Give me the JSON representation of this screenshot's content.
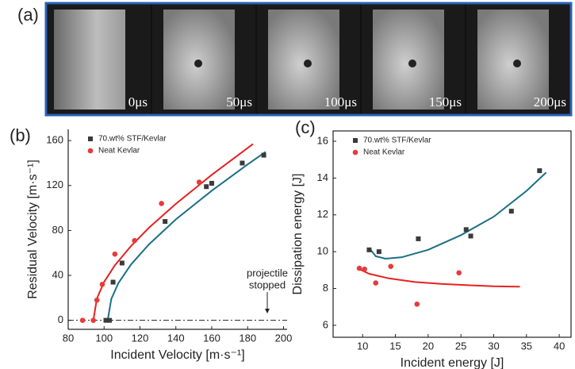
{
  "figure": {
    "panel_a": {
      "label": "(a)",
      "frames": [
        "0μs",
        "50μs",
        "100μs",
        "150μs",
        "200μs"
      ]
    }
  },
  "chart_data": [
    {
      "type": "scatter",
      "label": "(b)",
      "x_label": "Incident Velocity [m·s⁻¹]",
      "y_label": "Residual Velocity [m·s⁻¹]",
      "xlim": [
        80,
        202
      ],
      "ylim": [
        -8,
        170
      ],
      "xticks": [
        80,
        100,
        120,
        140,
        160,
        180,
        200
      ],
      "yticks": [
        0,
        40,
        80,
        120,
        160
      ],
      "annotation": [
        "projectile",
        "stopped"
      ],
      "frame": "open",
      "zero_line": true,
      "series": [
        {
          "name": "70.wt% STF/Kevlar",
          "color": "#3a3a3a",
          "marker": "square",
          "fit_color": "#1b6f86",
          "x": [
            101,
            103,
            105,
            110,
            134,
            157,
            160,
            177,
            189
          ],
          "values": [
            0,
            0,
            34,
            51,
            88,
            119,
            122,
            140,
            147
          ],
          "fit_x": [
            102,
            104,
            108,
            115,
            125,
            140,
            160,
            180,
            190
          ],
          "fit_values": [
            0,
            19.0,
            33.2,
            49.7,
            67.6,
            89.8,
            115.4,
            138.8,
            150
          ]
        },
        {
          "name": "Neat Kevlar",
          "color": "#e83a3a",
          "marker": "circle",
          "fit_color": "#e82020",
          "x": [
            88,
            94,
            96,
            99,
            106,
            117,
            132,
            153
          ],
          "values": [
            0,
            0,
            18,
            32,
            59,
            71,
            104,
            123
          ],
          "fit_x": [
            94,
            96,
            100,
            106,
            115,
            125,
            140,
            160,
            183
          ],
          "fit_values": [
            0,
            19.5,
            34.1,
            49.0,
            66.2,
            82.4,
            103.7,
            129.5,
            157.0
          ]
        }
      ]
    },
    {
      "type": "scatter",
      "label": "(c)",
      "x_label": "Incident energy [J]",
      "y_label": "Dissipation energy [J]",
      "xlim": [
        5.5,
        41.8
      ],
      "ylim": [
        5.35,
        16.56
      ],
      "xticks": [
        10,
        15,
        20,
        25,
        30,
        35,
        40
      ],
      "yticks": [
        6,
        8,
        10,
        12,
        14,
        16
      ],
      "frame": "box",
      "zero_line": false,
      "series": [
        {
          "name": "70.wt% STF/Kevlar",
          "color": "#3a3a3a",
          "marker": "square",
          "fit_color": "#1b6f86",
          "x": [
            11,
            12.5,
            18.5,
            25.8,
            26.5,
            32.7,
            37
          ],
          "values": [
            10.1,
            10.0,
            10.7,
            11.2,
            10.85,
            12.2,
            14.4
          ],
          "fit_x": [
            11,
            12,
            13.5,
            16,
            20,
            25,
            30,
            35,
            38
          ],
          "fit_values": [
            10.2,
            9.75,
            9.62,
            9.7,
            10.1,
            10.9,
            11.9,
            13.3,
            14.3
          ]
        },
        {
          "name": "Neat Kevlar",
          "color": "#e83a3a",
          "marker": "circle",
          "fit_color": "#e82020",
          "x": [
            9.5,
            10.3,
            12,
            14.3,
            18.3,
            24.7
          ],
          "values": [
            9.1,
            9.05,
            8.3,
            9.2,
            7.15,
            8.85
          ],
          "fit_x": [
            9.5,
            11,
            14,
            18,
            22,
            26,
            30,
            34
          ],
          "fit_values": [
            9.05,
            8.8,
            8.55,
            8.35,
            8.25,
            8.18,
            8.12,
            8.1
          ]
        }
      ]
    }
  ]
}
